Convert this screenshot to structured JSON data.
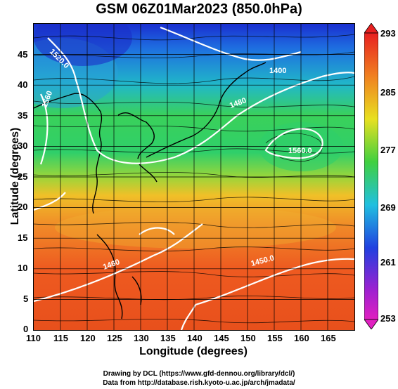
{
  "title": "GSM 06Z01Mar2023 (850.0hPa)",
  "xlabel": "Longitude (degrees)",
  "ylabel": "Latitude (degrees)",
  "x_ticks": [
    "110",
    "115",
    "120",
    "125",
    "130",
    "135",
    "140",
    "145",
    "150",
    "155",
    "160",
    "165"
  ],
  "y_ticks": [
    "0",
    "5",
    "10",
    "15",
    "20",
    "25",
    "30",
    "35",
    "40",
    "45"
  ],
  "colorbar": {
    "labels": [
      "293",
      "285",
      "277",
      "269",
      "261",
      "253"
    ],
    "min": 253,
    "max": 293
  },
  "contour_labels": [
    "1520.0",
    "1560",
    "1400",
    "1560.0",
    "1480",
    "1460",
    "1450.0"
  ],
  "footer": {
    "line1": "Drawing by DCL (https://www.gfd-dennou.org/library/dcl/)",
    "line2": "Data from http://database.rish.kyoto-u.ac.jp/arch/jmadata/"
  },
  "chart_data": {
    "type": "heatmap",
    "title": "GSM 06Z01Mar2023 (850.0hPa)",
    "xlabel": "Longitude (degrees)",
    "ylabel": "Latitude (degrees)",
    "xlim": [
      110,
      170
    ],
    "ylim": [
      0,
      50
    ],
    "grid": true,
    "colorbar_range": [
      253,
      293
    ],
    "colorbar_ticks": [
      253,
      261,
      269,
      277,
      285,
      293
    ]
  }
}
